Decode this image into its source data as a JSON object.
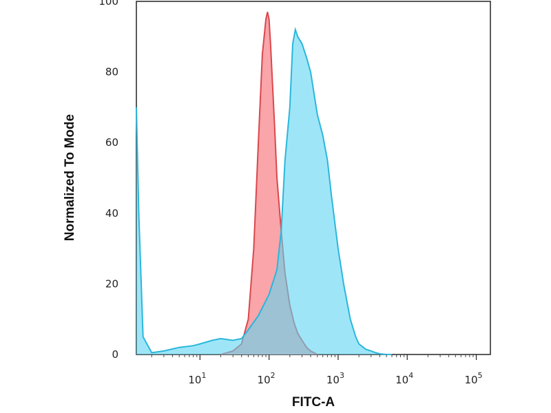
{
  "chart_data": {
    "type": "area",
    "xlabel": "FITC-A",
    "ylabel": "Normalized To Mode",
    "x_scale": "log",
    "xlim": [
      1.2,
      160000
    ],
    "ylim": [
      0,
      100
    ],
    "y_ticks": [
      0,
      20,
      40,
      60,
      80,
      100
    ],
    "x_ticks": [
      {
        "value": 10,
        "base": "10",
        "exp": "1"
      },
      {
        "value": 100,
        "base": "10",
        "exp": "2"
      },
      {
        "value": 1000,
        "base": "10",
        "exp": "3"
      },
      {
        "value": 10000,
        "base": "10",
        "exp": "4"
      },
      {
        "value": 100000,
        "base": "10",
        "exp": "5"
      }
    ],
    "grid": false,
    "legend": "none",
    "series": [
      {
        "color_fill": "#f9a0a4",
        "color_line": "#d9474d",
        "x": [
          20,
          30,
          40,
          50,
          60,
          70,
          80,
          90,
          95,
          100,
          105,
          110,
          120,
          130,
          150,
          170,
          200,
          230,
          260,
          300,
          350,
          400,
          500
        ],
        "y": [
          0,
          1,
          3,
          10,
          30,
          60,
          85,
          95,
          97,
          95,
          88,
          80,
          65,
          50,
          35,
          23,
          14,
          9,
          6,
          4,
          2,
          1,
          0
        ]
      },
      {
        "color_fill": "#5dd6f2",
        "color_line": "#2ab6dc",
        "x": [
          1.2,
          1.3,
          1.5,
          2,
          3,
          5,
          8,
          10,
          15,
          20,
          30,
          40,
          50,
          70,
          100,
          130,
          150,
          170,
          200,
          220,
          240,
          260,
          300,
          350,
          400,
          500,
          600,
          700,
          800,
          1000,
          1200,
          1500,
          1800,
          2000,
          2500,
          3000,
          3500,
          4000,
          5000,
          6000
        ],
        "y": [
          70,
          40,
          5,
          0.5,
          1,
          2,
          2.5,
          3,
          4,
          4.5,
          4,
          4.5,
          7,
          11,
          17,
          24,
          35,
          55,
          70,
          88,
          92,
          90,
          88,
          84,
          80,
          68,
          62,
          55,
          45,
          30,
          20,
          10,
          5,
          3,
          1.5,
          1,
          0.5,
          0.2,
          0,
          0
        ]
      }
    ]
  }
}
